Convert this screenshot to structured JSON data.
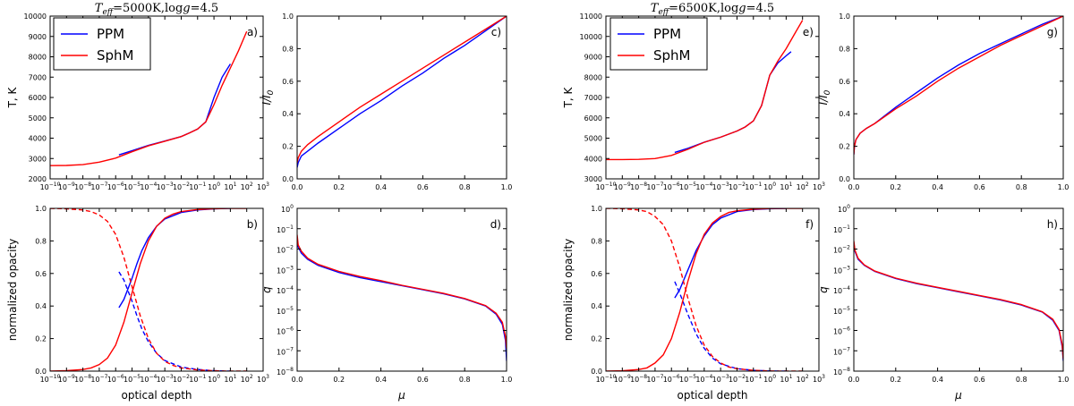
{
  "figure_titles": [
    "T_eff=5000K, log g=4.5",
    "T_eff=6500K, log g=4.5"
  ],
  "legend": [
    {
      "name": "PPM",
      "color": "#0000ff"
    },
    {
      "name": "SphM",
      "color": "#ff0000"
    }
  ],
  "chart_data": [
    {
      "type": "line",
      "panel": "a)",
      "xlabel": "",
      "ylabel": "T, K",
      "xscale": "log",
      "xlim": [
        -10,
        3
      ],
      "ylim": [
        2000,
        10000
      ],
      "yticks": [
        2000,
        3000,
        4000,
        5000,
        6000,
        7000,
        8000,
        9000,
        10000
      ],
      "series": [
        {
          "name": "PPM",
          "color": "#0000ff",
          "style": "solid",
          "x": [
            -5.8,
            -5,
            -4,
            -3,
            -2,
            -1.5,
            -1,
            -0.5,
            0,
            0.5,
            1
          ],
          "y": [
            3180,
            3380,
            3650,
            3860,
            4080,
            4260,
            4450,
            4800,
            6000,
            7000,
            7650
          ]
        },
        {
          "name": "SphM",
          "color": "#ff0000",
          "style": "solid",
          "x": [
            -10,
            -9,
            -8,
            -7,
            -6,
            -5,
            -4,
            -3,
            -2,
            -1.5,
            -1,
            -0.5,
            0,
            0.5,
            1,
            1.5,
            2
          ],
          "y": [
            2650,
            2660,
            2700,
            2820,
            3020,
            3330,
            3620,
            3850,
            4080,
            4250,
            4450,
            4800,
            5650,
            6600,
            7450,
            8300,
            9250
          ]
        }
      ]
    },
    {
      "type": "line",
      "panel": "b)",
      "xlabel": "optical depth",
      "ylabel": "normalized opacity",
      "xscale": "log",
      "xlim": [
        -10,
        3
      ],
      "ylim": [
        0,
        1
      ],
      "yticks": [
        0,
        0.2,
        0.4,
        0.6,
        0.8,
        1.0
      ],
      "series": [
        {
          "name": "PPM",
          "color": "#0000ff",
          "style": "solid",
          "x": [
            -5.8,
            -5.5,
            -5,
            -4.7,
            -4.4,
            -4,
            -3.5,
            -3,
            -2,
            -1,
            0,
            1
          ],
          "y": [
            0.39,
            0.44,
            0.57,
            0.66,
            0.74,
            0.82,
            0.89,
            0.935,
            0.975,
            0.99,
            0.997,
            1.0
          ]
        },
        {
          "name": "PPM",
          "color": "#0000ff",
          "style": "dashed",
          "x": [
            -5.8,
            -5.5,
            -5,
            -4.7,
            -4.4,
            -4,
            -3.5,
            -3,
            -2,
            -1,
            0,
            1
          ],
          "y": [
            0.61,
            0.56,
            0.43,
            0.34,
            0.26,
            0.18,
            0.11,
            0.065,
            0.025,
            0.01,
            0.003,
            0.0
          ]
        },
        {
          "name": "SphM",
          "color": "#ff0000",
          "style": "solid",
          "x": [
            -10,
            -9,
            -8,
            -7.5,
            -7,
            -6.5,
            -6,
            -5.5,
            -5,
            -4.5,
            -4,
            -3.5,
            -3,
            -2.5,
            -2,
            -1,
            0,
            1,
            2
          ],
          "y": [
            0.0,
            0.003,
            0.01,
            0.02,
            0.04,
            0.08,
            0.16,
            0.3,
            0.48,
            0.66,
            0.8,
            0.89,
            0.94,
            0.965,
            0.98,
            0.993,
            0.998,
            1.0,
            1.0
          ]
        },
        {
          "name": "SphM",
          "color": "#ff0000",
          "style": "dashed",
          "x": [
            -10,
            -9,
            -8,
            -7.5,
            -7,
            -6.5,
            -6,
            -5.5,
            -5,
            -4.5,
            -4,
            -3.5,
            -3,
            -2.5,
            -2,
            -1,
            0,
            1,
            2
          ],
          "y": [
            1.0,
            0.997,
            0.99,
            0.98,
            0.96,
            0.92,
            0.84,
            0.7,
            0.52,
            0.34,
            0.2,
            0.11,
            0.06,
            0.035,
            0.02,
            0.007,
            0.002,
            0.0,
            0.0
          ]
        }
      ]
    },
    {
      "type": "line",
      "panel": "c)",
      "xlabel": "",
      "ylabel": "I/I0",
      "xlim": [
        0,
        1
      ],
      "ylim": [
        0,
        1
      ],
      "xticks": [
        0,
        0.2,
        0.4,
        0.6,
        0.8,
        1.0
      ],
      "yticks": [
        0,
        0.2,
        0.4,
        0.6,
        0.8,
        1.0
      ],
      "series": [
        {
          "name": "PPM",
          "color": "#0000ff",
          "style": "solid",
          "x": [
            0,
            0.005,
            0.02,
            0.05,
            0.1,
            0.2,
            0.3,
            0.4,
            0.5,
            0.6,
            0.7,
            0.8,
            0.9,
            1.0
          ],
          "y": [
            0.07,
            0.1,
            0.14,
            0.17,
            0.22,
            0.31,
            0.4,
            0.48,
            0.57,
            0.65,
            0.74,
            0.82,
            0.91,
            1.0
          ]
        },
        {
          "name": "SphM",
          "color": "#ff0000",
          "style": "solid",
          "x": [
            0,
            0.005,
            0.02,
            0.05,
            0.1,
            0.2,
            0.3,
            0.4,
            0.5,
            0.6,
            0.7,
            0.8,
            0.9,
            1.0
          ],
          "y": [
            0.1,
            0.13,
            0.17,
            0.21,
            0.26,
            0.35,
            0.44,
            0.52,
            0.6,
            0.68,
            0.76,
            0.84,
            0.92,
            1.0
          ]
        }
      ]
    },
    {
      "type": "line",
      "panel": "d)",
      "xlabel": "μ",
      "ylabel": "q",
      "yscale": "log",
      "xlim": [
        0,
        1
      ],
      "ylim": [
        -8,
        0
      ],
      "xticks": [
        0,
        0.2,
        0.4,
        0.6,
        0.8,
        1.0
      ],
      "series": [
        {
          "name": "PPM",
          "color": "#0000ff",
          "style": "solid",
          "x": [
            0,
            0.005,
            0.02,
            0.05,
            0.1,
            0.2,
            0.3,
            0.4,
            0.5,
            0.6,
            0.7,
            0.8,
            0.9,
            0.95,
            0.98,
            0.995,
            1.0
          ],
          "y": [
            -1.5,
            -1.9,
            -2.2,
            -2.5,
            -2.8,
            -3.15,
            -3.4,
            -3.6,
            -3.8,
            -4.0,
            -4.2,
            -4.45,
            -4.8,
            -5.2,
            -5.7,
            -6.5,
            -7.5
          ]
        },
        {
          "name": "SphM",
          "color": "#ff0000",
          "style": "solid",
          "x": [
            0,
            0.005,
            0.02,
            0.05,
            0.1,
            0.2,
            0.3,
            0.4,
            0.5,
            0.6,
            0.7,
            0.8,
            0.9,
            0.95,
            0.98,
            0.995,
            1.0
          ],
          "y": [
            -1.3,
            -1.8,
            -2.1,
            -2.45,
            -2.75,
            -3.1,
            -3.35,
            -3.55,
            -3.78,
            -3.98,
            -4.18,
            -4.43,
            -4.78,
            -5.15,
            -5.6,
            -6.3,
            -6.9
          ]
        }
      ]
    },
    {
      "type": "line",
      "panel": "e)",
      "xlabel": "",
      "ylabel": "T, K",
      "xscale": "log",
      "xlim": [
        -10,
        3
      ],
      "ylim": [
        3000,
        11000
      ],
      "yticks": [
        3000,
        4000,
        5000,
        6000,
        7000,
        8000,
        9000,
        10000,
        11000
      ],
      "series": [
        {
          "name": "PPM",
          "color": "#0000ff",
          "style": "solid",
          "x": [
            -5.8,
            -5,
            -4,
            -3,
            -2,
            -1.5,
            -1,
            -0.5,
            0,
            0.5,
            1,
            1.3
          ],
          "y": [
            4300,
            4500,
            4800,
            5050,
            5350,
            5550,
            5850,
            6600,
            8100,
            8700,
            9050,
            9250
          ]
        },
        {
          "name": "SphM",
          "color": "#ff0000",
          "style": "solid",
          "x": [
            -10,
            -9,
            -8,
            -7,
            -6,
            -5,
            -4,
            -3,
            -2,
            -1.5,
            -1,
            -0.5,
            0,
            0.5,
            1,
            1.5,
            2
          ],
          "y": [
            3950,
            3950,
            3960,
            4000,
            4150,
            4450,
            4800,
            5050,
            5350,
            5550,
            5850,
            6600,
            8100,
            8800,
            9400,
            10100,
            10800
          ]
        }
      ]
    },
    {
      "type": "line",
      "panel": "f)",
      "xlabel": "optical depth",
      "ylabel": "normalized opacity",
      "xscale": "log",
      "xlim": [
        -10,
        3
      ],
      "ylim": [
        0,
        1
      ],
      "yticks": [
        0,
        0.2,
        0.4,
        0.6,
        0.8,
        1.0
      ],
      "series": [
        {
          "name": "PPM",
          "color": "#0000ff",
          "style": "solid",
          "x": [
            -5.8,
            -5.5,
            -5,
            -4.5,
            -4,
            -3.5,
            -3,
            -2,
            -1,
            0,
            1
          ],
          "y": [
            0.45,
            0.5,
            0.62,
            0.74,
            0.83,
            0.9,
            0.94,
            0.98,
            0.993,
            0.998,
            1.0
          ]
        },
        {
          "name": "PPM",
          "color": "#0000ff",
          "style": "dashed",
          "x": [
            -5.8,
            -5.5,
            -5,
            -4.5,
            -4,
            -3.5,
            -3,
            -2,
            -1,
            0,
            1
          ],
          "y": [
            0.55,
            0.48,
            0.35,
            0.23,
            0.14,
            0.08,
            0.045,
            0.015,
            0.005,
            0.001,
            0.0
          ]
        },
        {
          "name": "SphM",
          "color": "#ff0000",
          "style": "solid",
          "x": [
            -10,
            -9,
            -8,
            -7.5,
            -7,
            -6.5,
            -6,
            -5.5,
            -5,
            -4.5,
            -4,
            -3.5,
            -3,
            -2.5,
            -2,
            -1,
            0,
            1,
            2
          ],
          "y": [
            0.0,
            0.002,
            0.01,
            0.02,
            0.05,
            0.1,
            0.2,
            0.36,
            0.55,
            0.72,
            0.84,
            0.91,
            0.95,
            0.975,
            0.985,
            0.995,
            0.999,
            1.0,
            1.0
          ]
        },
        {
          "name": "SphM",
          "color": "#ff0000",
          "style": "dashed",
          "x": [
            -10,
            -9,
            -8,
            -7.5,
            -7,
            -6.5,
            -6,
            -5.5,
            -5,
            -4.5,
            -4,
            -3.5,
            -3,
            -2.5,
            -2,
            -1,
            0,
            1,
            2
          ],
          "y": [
            1.0,
            0.998,
            0.99,
            0.98,
            0.95,
            0.9,
            0.8,
            0.64,
            0.45,
            0.28,
            0.16,
            0.09,
            0.05,
            0.025,
            0.015,
            0.005,
            0.001,
            0.0,
            0.0
          ]
        }
      ]
    },
    {
      "type": "line",
      "panel": "g)",
      "xlabel": "",
      "ylabel": "I/I0",
      "xlim": [
        0,
        1
      ],
      "ylim": [
        0,
        1
      ],
      "xticks": [
        0,
        0.2,
        0.4,
        0.6,
        0.8,
        1.0
      ],
      "yticks": [
        0,
        0.2,
        0.4,
        0.6,
        0.8,
        1.0
      ],
      "series": [
        {
          "name": "PPM",
          "color": "#0000ff",
          "style": "solid",
          "x": [
            0,
            0.003,
            0.01,
            0.03,
            0.06,
            0.1,
            0.2,
            0.3,
            0.4,
            0.5,
            0.6,
            0.7,
            0.8,
            0.9,
            1.0
          ],
          "y": [
            0.15,
            0.2,
            0.24,
            0.28,
            0.31,
            0.34,
            0.44,
            0.53,
            0.62,
            0.7,
            0.77,
            0.83,
            0.89,
            0.95,
            1.0
          ]
        },
        {
          "name": "SphM",
          "color": "#ff0000",
          "style": "solid",
          "x": [
            0,
            0.003,
            0.01,
            0.03,
            0.06,
            0.1,
            0.2,
            0.3,
            0.4,
            0.5,
            0.6,
            0.7,
            0.8,
            0.9,
            1.0
          ],
          "y": [
            0.15,
            0.2,
            0.24,
            0.28,
            0.31,
            0.34,
            0.43,
            0.51,
            0.6,
            0.68,
            0.75,
            0.82,
            0.88,
            0.94,
            1.0
          ]
        }
      ]
    },
    {
      "type": "line",
      "panel": "h)",
      "xlabel": "μ",
      "ylabel": "q",
      "yscale": "log",
      "xlim": [
        0,
        1
      ],
      "ylim": [
        -8,
        0
      ],
      "xticks": [
        0,
        0.2,
        0.4,
        0.6,
        0.8,
        1.0
      ],
      "series": [
        {
          "name": "PPM",
          "color": "#0000ff",
          "style": "solid",
          "x": [
            0,
            0.005,
            0.02,
            0.05,
            0.1,
            0.2,
            0.3,
            0.4,
            0.5,
            0.6,
            0.7,
            0.8,
            0.9,
            0.95,
            0.98,
            0.995,
            1.0
          ],
          "y": [
            -1.7,
            -2.1,
            -2.5,
            -2.8,
            -3.1,
            -3.45,
            -3.7,
            -3.9,
            -4.1,
            -4.3,
            -4.5,
            -4.75,
            -5.1,
            -5.5,
            -6.0,
            -6.8,
            -7.5
          ]
        },
        {
          "name": "SphM",
          "color": "#ff0000",
          "style": "solid",
          "x": [
            0,
            0.005,
            0.02,
            0.05,
            0.1,
            0.2,
            0.3,
            0.4,
            0.5,
            0.6,
            0.7,
            0.8,
            0.9,
            0.95,
            0.98,
            0.995,
            1.0
          ],
          "y": [
            -1.6,
            -2.05,
            -2.45,
            -2.78,
            -3.08,
            -3.43,
            -3.68,
            -3.88,
            -4.08,
            -4.28,
            -4.48,
            -4.73,
            -5.08,
            -5.45,
            -5.95,
            -6.7,
            -7.4
          ]
        }
      ]
    }
  ]
}
